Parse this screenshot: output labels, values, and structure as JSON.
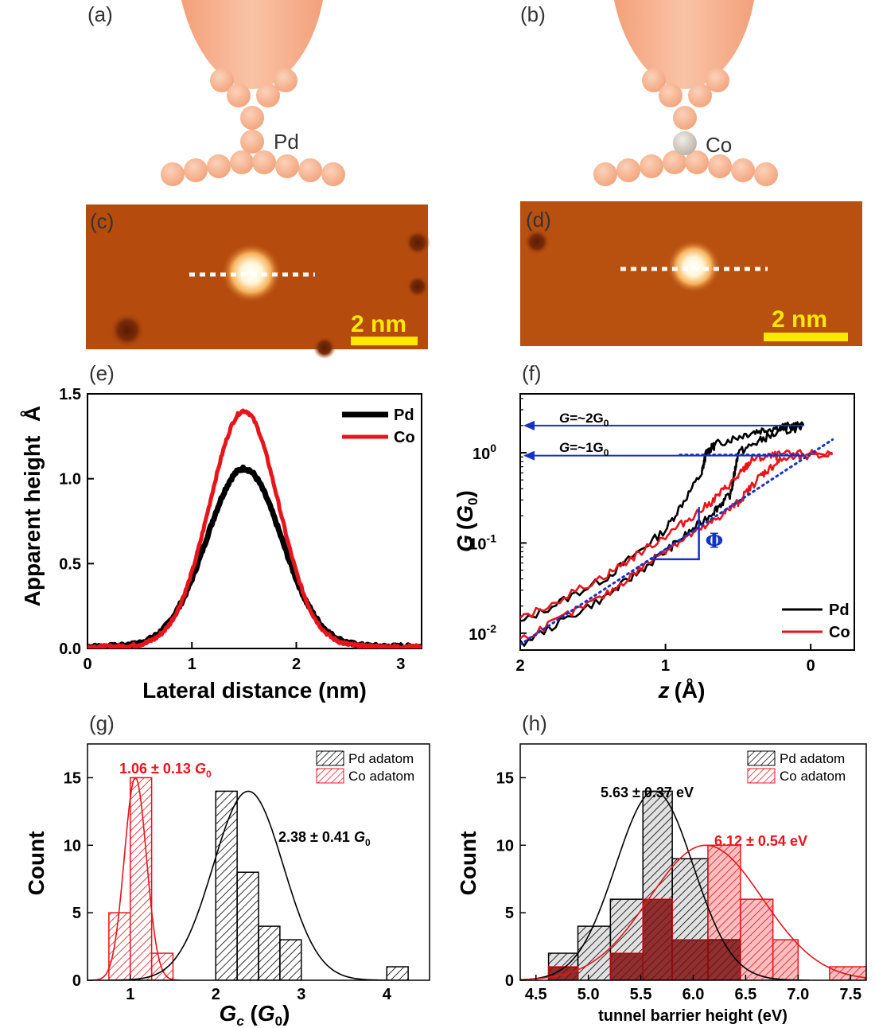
{
  "panels": {
    "a": {
      "label": "(a)",
      "atom": "Pd"
    },
    "b": {
      "label": "(b)",
      "atom": "Co"
    },
    "c": {
      "label": "(c)",
      "scalebar": "2 nm"
    },
    "d": {
      "label": "(d)",
      "scalebar": "2 nm"
    },
    "e": {
      "label": "(e)"
    },
    "f": {
      "label": "(f)"
    },
    "g": {
      "label": "(g)"
    },
    "h": {
      "label": "(h)"
    }
  },
  "colors": {
    "tip": "#f5a77d",
    "atom": "#f7b48f",
    "co_atom": "#d9d2c6",
    "stm_bg": "#b54b0d",
    "scalebar": "#ffe800",
    "pd": "#000000",
    "co": "#e8141b",
    "blue": "#1432c8"
  },
  "chart_data": [
    {
      "panel": "e",
      "type": "line",
      "xlabel": "Lateral distance (nm)",
      "ylabel": "Apparent height",
      "ylabel_unit": "Å",
      "xlim": [
        0,
        3.2
      ],
      "ylim": [
        0,
        1.5
      ],
      "xticks": [
        "0",
        "1",
        "2",
        "3"
      ],
      "yticks": [
        "0.0",
        "0.5",
        "1.0",
        "1.5"
      ],
      "legend": [
        "Pd",
        "Co"
      ],
      "series": [
        {
          "name": "Pd",
          "color": "#000000",
          "center": 1.5,
          "peak": 1.05,
          "sigma": 0.36
        },
        {
          "name": "Co",
          "color": "#e8141b",
          "center": 1.5,
          "peak": 1.39,
          "sigma": 0.33
        }
      ]
    },
    {
      "panel": "f",
      "type": "line",
      "xlabel_var": "z",
      "xlabel_unit": "(Å)",
      "ylabel_var": "G",
      "ylabel_unit_prefix": "(",
      "ylabel_unit_var": "G",
      "ylabel_unit_sub": "0",
      "ylabel_unit_suffix": ")",
      "xlim": [
        2,
        -0.3
      ],
      "ylog": true,
      "ylim": [
        0.0065,
        4.5
      ],
      "xticks": [
        "2",
        "1",
        "0"
      ],
      "yticks": [
        {
          "base": "10",
          "exp": "0"
        },
        {
          "base": "10",
          "exp": "-1"
        },
        {
          "base": "10",
          "exp": "-2"
        }
      ],
      "legend": [
        "Pd",
        "Co"
      ],
      "annotation_G2": {
        "prefix": "G",
        "value": "=~2G",
        "sub": "0"
      },
      "annotation_G1": {
        "prefix": "G",
        "value": "=~1G",
        "sub": "0"
      },
      "annotation_phi": "Φ",
      "series": [
        {
          "name": "Pd trace 1",
          "color": "#000000",
          "points": [
            [
              2.0,
              0.013
            ],
            [
              1.4,
              0.042
            ],
            [
              1.0,
              0.14
            ],
            [
              0.75,
              0.6
            ],
            [
              0.72,
              1.0
            ],
            [
              0.65,
              1.25
            ],
            [
              0.4,
              1.7
            ],
            [
              0.2,
              1.95
            ],
            [
              0.05,
              2.0
            ]
          ]
        },
        {
          "name": "Pd trace 2",
          "color": "#000000",
          "points": [
            [
              2.0,
              0.0075
            ],
            [
              1.4,
              0.026
            ],
            [
              1.0,
              0.08
            ],
            [
              0.7,
              0.2
            ],
            [
              0.55,
              0.35
            ],
            [
              0.5,
              1.0
            ],
            [
              0.3,
              1.5
            ],
            [
              0.05,
              2.0
            ]
          ]
        },
        {
          "name": "Co trace 1",
          "color": "#e8141b",
          "points": [
            [
              2.0,
              0.014
            ],
            [
              1.4,
              0.045
            ],
            [
              1.0,
              0.12
            ],
            [
              0.7,
              0.27
            ],
            [
              0.5,
              0.55
            ],
            [
              0.4,
              0.85
            ],
            [
              0.2,
              0.95
            ],
            [
              -0.15,
              1.0
            ]
          ]
        },
        {
          "name": "Co trace 2",
          "color": "#e8141b",
          "points": [
            [
              2.0,
              0.0085
            ],
            [
              1.4,
              0.027
            ],
            [
              1.0,
              0.085
            ],
            [
              0.7,
              0.16
            ],
            [
              0.5,
              0.28
            ],
            [
              0.35,
              0.55
            ],
            [
              0.2,
              0.85
            ],
            [
              -0.15,
              0.95
            ]
          ]
        }
      ]
    },
    {
      "panel": "g",
      "type": "bar",
      "xlabel_var": "G",
      "xlabel_sub": "c",
      "xlabel_unit_prefix": " (",
      "xlabel_unit_var": "G",
      "xlabel_unit_sub": "0",
      "xlabel_unit_suffix": ")",
      "ylabel": "Count",
      "xlim": [
        0.5,
        4.5
      ],
      "ylim": [
        0,
        17.5
      ],
      "xticks": [
        "1",
        "2",
        "3",
        "4"
      ],
      "yticks": [
        "0",
        "5",
        "10",
        "15"
      ],
      "legend": [
        "Pd adatom",
        "Co adatom"
      ],
      "co_fit_label": {
        "value": "1.06 ± 0.13 ",
        "var": "G",
        "sub": "0"
      },
      "pd_fit_label": {
        "value": "2.38 ± 0.41 ",
        "var": "G",
        "sub": "0"
      },
      "series": [
        {
          "name": "Co adatom",
          "color": "#e8141b",
          "bins": [
            [
              0.75,
              1.0,
              5
            ],
            [
              1.0,
              1.25,
              15
            ],
            [
              1.25,
              1.5,
              2
            ]
          ],
          "fit": {
            "mean": 1.06,
            "sd": 0.13,
            "peak": 15
          }
        },
        {
          "name": "Pd adatom",
          "color": "#000000",
          "bins": [
            [
              2.0,
              2.25,
              14
            ],
            [
              2.25,
              2.5,
              8
            ],
            [
              2.5,
              2.75,
              4
            ],
            [
              2.75,
              3.0,
              3
            ],
            [
              4.0,
              4.25,
              1
            ]
          ],
          "fit": {
            "mean": 2.38,
            "sd": 0.41,
            "peak": 14
          }
        }
      ]
    },
    {
      "panel": "h",
      "type": "bar",
      "xlabel": "tunnel barrier height (eV)",
      "ylabel": "Count",
      "xlim": [
        4.35,
        7.65
      ],
      "ylim": [
        0,
        17.5
      ],
      "xticks": [
        "4.5",
        "5.0",
        "5.5",
        "6.0",
        "6.5",
        "7.0",
        "7.5"
      ],
      "yticks": [
        "0",
        "5",
        "10",
        "15"
      ],
      "legend": [
        "Pd adatom",
        "Co adatom"
      ],
      "pd_fit_label": "5.63 ± 0.37 eV",
      "co_fit_label": "6.12 ± 0.54 eV",
      "series": [
        {
          "name": "Pd adatom",
          "color": "#000000",
          "bins": [
            [
              4.62,
              4.9,
              2
            ],
            [
              4.9,
              5.21,
              4
            ],
            [
              5.21,
              5.52,
              6
            ],
            [
              5.52,
              5.8,
              14
            ],
            [
              5.8,
              6.14,
              9
            ],
            [
              6.14,
              6.45,
              3
            ]
          ],
          "fit": {
            "mean": 5.63,
            "sd": 0.37,
            "peak": 14
          }
        },
        {
          "name": "Co adatom",
          "color": "#e8141b",
          "bins": [
            [
              4.62,
              4.9,
              1
            ],
            [
              5.21,
              5.52,
              2
            ],
            [
              5.52,
              5.8,
              6
            ],
            [
              5.8,
              6.14,
              3
            ],
            [
              6.14,
              6.45,
              10
            ],
            [
              6.45,
              6.76,
              6
            ],
            [
              6.76,
              7.0,
              3
            ],
            [
              7.3,
              7.65,
              1
            ]
          ],
          "fit": {
            "mean": 6.12,
            "sd": 0.54,
            "peak": 10
          }
        }
      ]
    }
  ]
}
